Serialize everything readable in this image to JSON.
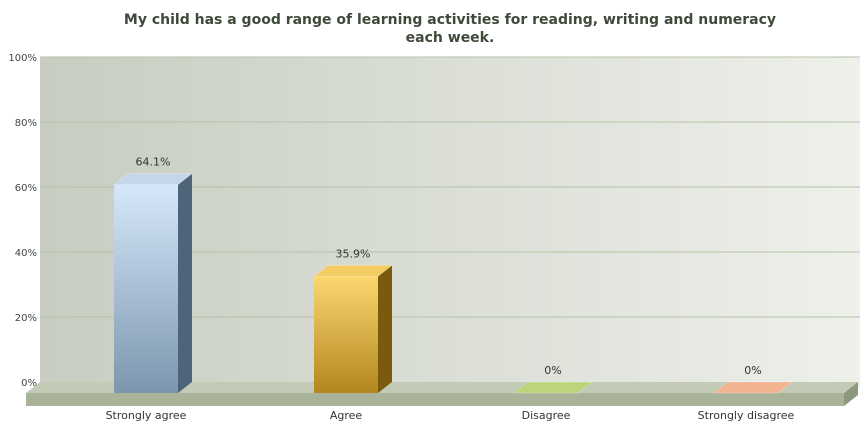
{
  "chart_data": {
    "type": "bar",
    "title_lines": [
      "My child has a good range of learning activities for reading, writing and numeracy",
      "each week."
    ],
    "categories": [
      "Strongly agree",
      "Agree",
      "Disagree",
      "Strongly disagree"
    ],
    "values": [
      64.1,
      35.9,
      0,
      0
    ],
    "value_labels": [
      "64.1%",
      "35.9%",
      "0%",
      "0%"
    ],
    "yticks": [
      "0%",
      "20%",
      "40%",
      "60%",
      "80%",
      "100%"
    ],
    "ylim": [
      0,
      100
    ],
    "grid": true,
    "legend": "none",
    "colors": {
      "series": [
        "#9fbad6",
        "#e8b940",
        "#a8c468",
        "#e8a07a"
      ],
      "plot_bg_left": "#c9cfc3",
      "plot_bg_right": "#eceee8",
      "grid": "#b5c0a4",
      "floor": "#b9c1ad"
    }
  }
}
